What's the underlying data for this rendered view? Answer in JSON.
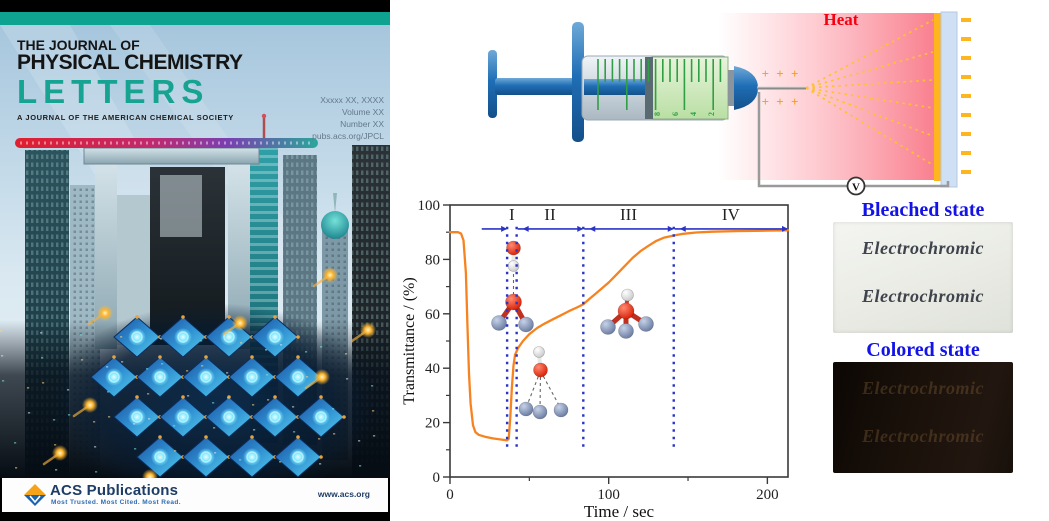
{
  "cover": {
    "title_line1": "THE JOURNAL OF",
    "title_line2": "PHYSICAL CHEMISTRY",
    "title_line3": "LETTERS",
    "subtitle": "A JOURNAL OF THE AMERICAN CHEMICAL SOCIETY",
    "issue_line1": "Xxxxx XX, XXXX",
    "issue_line2": "Volume XX",
    "issue_line3": "Number XX",
    "issue_line4": "pubs.acs.org/JPCL",
    "publisher": "ACS Publications",
    "publisher_tagline": "Most Trusted. Most Cited. Most Read.",
    "website": "www.acs.org",
    "accent_color": "#17a391"
  },
  "figure": {
    "heat_label": "Heat",
    "voltmeter_label": "V",
    "plus_charges": "+ + +",
    "bleached": {
      "label": "Bleached state",
      "text1": "Electrochromic",
      "text2": "Electrochromic"
    },
    "colored": {
      "label": "Colored state",
      "text1": "Electrochromic",
      "text2": "Electrochromic"
    },
    "label_color": "#1313e8"
  },
  "chart_data": {
    "type": "line",
    "title": "",
    "xlabel": "Time / sec",
    "ylabel": "Transmittance / (%)",
    "xlim": [
      0,
      213
    ],
    "ylim": [
      0,
      100
    ],
    "xticks": [
      0,
      100,
      200
    ],
    "xticks_minor": [
      50,
      150
    ],
    "yticks": [
      0,
      20,
      40,
      60,
      80,
      100
    ],
    "yticks_minor": [
      10,
      30,
      50,
      70,
      90
    ],
    "grid": false,
    "legend": "none",
    "line_color": "#f78320",
    "annotation_color": "#2a35c8",
    "dividers": [
      36,
      42,
      84,
      141
    ],
    "regions": [
      {
        "label": "I",
        "start": 36,
        "end": 42
      },
      {
        "label": "II",
        "start": 42,
        "end": 84
      },
      {
        "label": "III",
        "start": 84,
        "end": 141
      },
      {
        "label": "IV",
        "start": 141,
        "end": 213
      }
    ],
    "series": [
      {
        "name": "transmittance",
        "x": [
          0,
          5,
          7,
          8.5,
          10,
          11,
          12,
          13,
          14.5,
          16,
          18,
          22,
          27,
          32,
          36,
          37,
          38,
          39,
          40,
          41,
          43,
          46,
          50,
          55,
          60,
          65,
          70,
          75,
          80,
          84,
          88,
          92,
          96,
          100,
          105,
          110,
          115,
          120,
          125,
          130,
          135,
          141,
          147,
          155,
          165,
          180,
          200,
          213
        ],
        "y": [
          90,
          90,
          89.5,
          87,
          75,
          55,
          38,
          27,
          19,
          16.5,
          15.5,
          14.8,
          14.2,
          13.8,
          13.5,
          14,
          22,
          33,
          41,
          45,
          47.5,
          50,
          52.5,
          54.8,
          56.5,
          58,
          59.5,
          61,
          62.3,
          63.5,
          65.5,
          67.5,
          69.5,
          71.5,
          74.5,
          77.5,
          80.5,
          83,
          85,
          86.8,
          88,
          88.8,
          89.4,
          89.9,
          90.2,
          90.4,
          90.6,
          90.7
        ]
      }
    ]
  }
}
